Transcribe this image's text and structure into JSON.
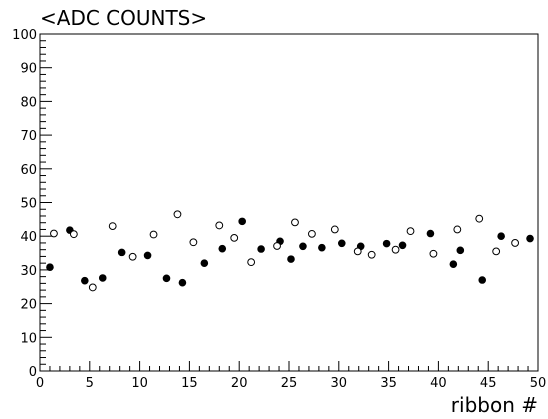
{
  "chart_data": {
    "type": "scatter",
    "title": "<ADC COUNTS>",
    "xlabel": "ribbon #",
    "ylabel": "",
    "xlim": [
      0,
      50
    ],
    "ylim": [
      0,
      100
    ],
    "x_major_ticks": [
      0,
      5,
      10,
      15,
      20,
      25,
      30,
      35,
      40,
      45,
      50
    ],
    "y_major_ticks": [
      0,
      10,
      20,
      30,
      40,
      50,
      60,
      70,
      80,
      90,
      100
    ],
    "grid": false,
    "legend": "none",
    "series": [
      {
        "marker": "filled-circle",
        "color": "#000000",
        "points": [
          [
            1,
            30.8
          ],
          [
            3,
            41.8
          ],
          [
            4.5,
            26.8
          ],
          [
            6.3,
            27.6
          ],
          [
            8.2,
            35.2
          ],
          [
            10.8,
            34.3
          ],
          [
            12.7,
            27.5
          ],
          [
            14.3,
            26.2
          ],
          [
            16.5,
            32.0
          ],
          [
            18.3,
            36.3
          ],
          [
            20.3,
            44.4
          ],
          [
            22.2,
            36.2
          ],
          [
            24.1,
            38.5
          ],
          [
            25.2,
            33.2
          ],
          [
            26.4,
            37.0
          ],
          [
            28.3,
            36.6
          ],
          [
            30.3,
            37.9
          ],
          [
            32.2,
            37.0
          ],
          [
            34.8,
            37.8
          ],
          [
            36.4,
            37.3
          ],
          [
            39.2,
            40.8
          ],
          [
            41.5,
            31.7
          ],
          [
            42.2,
            35.8
          ],
          [
            44.4,
            27.0
          ],
          [
            46.3,
            40.0
          ],
          [
            49.2,
            39.3
          ]
        ]
      },
      {
        "marker": "open-circle",
        "color": "#000000",
        "points": [
          [
            1.4,
            40.8
          ],
          [
            3.4,
            40.6
          ],
          [
            5.3,
            24.8
          ],
          [
            7.3,
            43.0
          ],
          [
            9.3,
            33.9
          ],
          [
            11.4,
            40.5
          ],
          [
            13.8,
            46.5
          ],
          [
            15.4,
            38.2
          ],
          [
            18.0,
            43.2
          ],
          [
            19.5,
            39.5
          ],
          [
            21.2,
            32.3
          ],
          [
            23.8,
            37.1
          ],
          [
            25.6,
            44.1
          ],
          [
            27.3,
            40.7
          ],
          [
            29.6,
            42.0
          ],
          [
            31.9,
            35.5
          ],
          [
            33.3,
            34.5
          ],
          [
            35.7,
            36.0
          ],
          [
            37.2,
            41.5
          ],
          [
            39.5,
            34.8
          ],
          [
            41.9,
            42.0
          ],
          [
            44.1,
            45.2
          ],
          [
            45.8,
            35.5
          ],
          [
            47.7,
            38.0
          ]
        ]
      }
    ]
  }
}
